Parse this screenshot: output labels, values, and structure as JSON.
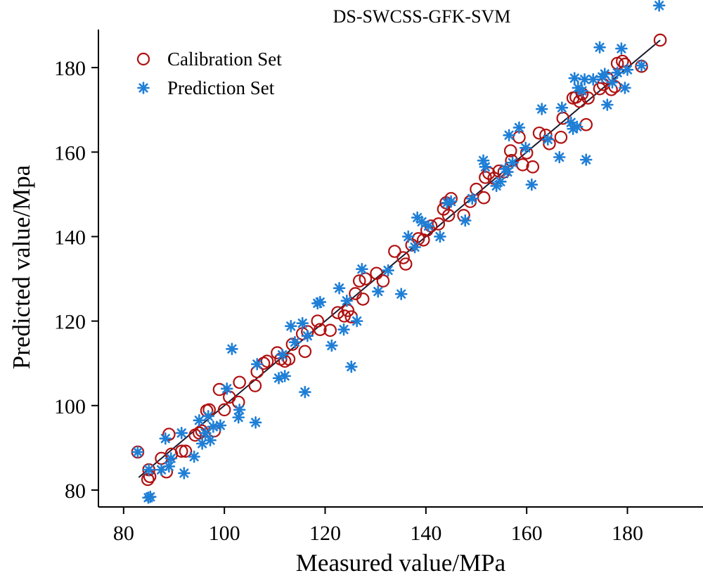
{
  "chart_data": {
    "type": "scatter",
    "title": "DS-SWCSS-GFK-SVM",
    "xlabel": "Measured value/MPa",
    "ylabel": "Predicted value/Mpa",
    "xlim": [
      75,
      195
    ],
    "ylim": [
      76,
      196
    ],
    "xticks": [
      80,
      100,
      120,
      140,
      160,
      180
    ],
    "yticks": [
      80,
      100,
      120,
      140,
      160,
      180
    ],
    "grid": false,
    "legend_position": "top-left",
    "fit_line": {
      "x": [
        83,
        186.5
      ],
      "y": [
        83,
        186.5
      ],
      "color": "#1a1a2e"
    },
    "series": [
      {
        "name": "Calibration Set",
        "marker": "circle",
        "color": "#b01111",
        "points": [
          [
            82.8,
            89
          ],
          [
            84.8,
            82.5
          ],
          [
            85.2,
            83.2
          ],
          [
            85,
            84.8
          ],
          [
            87.5,
            87.5
          ],
          [
            88.5,
            84.3
          ],
          [
            89,
            93.2
          ],
          [
            89.5,
            88.5
          ],
          [
            91.5,
            89.2
          ],
          [
            92.3,
            89.2
          ],
          [
            94.2,
            93
          ],
          [
            95,
            93.5
          ],
          [
            95.5,
            94
          ],
          [
            96.5,
            98.8
          ],
          [
            97,
            99
          ],
          [
            98,
            94
          ],
          [
            99,
            103.8
          ],
          [
            100,
            99
          ],
          [
            101,
            102
          ],
          [
            102.8,
            100.8
          ],
          [
            103,
            105.5
          ],
          [
            106.1,
            104.7
          ],
          [
            106.5,
            108
          ],
          [
            107.8,
            110
          ],
          [
            108.5,
            110.5
          ],
          [
            110.5,
            112.5
          ],
          [
            111.2,
            111
          ],
          [
            112,
            110.5
          ],
          [
            112.8,
            111
          ],
          [
            113.5,
            114.5
          ],
          [
            115.5,
            117
          ],
          [
            116,
            112.8
          ],
          [
            116.5,
            117.5
          ],
          [
            118.5,
            120
          ],
          [
            119,
            118
          ],
          [
            121,
            117.8
          ],
          [
            122.5,
            122
          ],
          [
            123.8,
            121.2
          ],
          [
            124.5,
            122.5
          ],
          [
            125.2,
            121
          ],
          [
            126,
            126.5
          ],
          [
            126.8,
            129.5
          ],
          [
            127.5,
            125.2
          ],
          [
            128,
            130
          ],
          [
            130.2,
            131.3
          ],
          [
            131.5,
            129.5
          ],
          [
            133.8,
            136.5
          ],
          [
            135.5,
            135
          ],
          [
            136,
            133.5
          ],
          [
            137.2,
            138
          ],
          [
            138.5,
            139.5
          ],
          [
            139.5,
            139.2
          ],
          [
            140.2,
            141.5
          ],
          [
            141,
            142.5
          ],
          [
            142.5,
            143
          ],
          [
            143.5,
            146.5
          ],
          [
            144,
            148
          ],
          [
            144.5,
            145
          ],
          [
            145,
            149
          ],
          [
            147.5,
            145
          ],
          [
            148.8,
            148.3
          ],
          [
            150,
            151.2
          ],
          [
            151.5,
            149.2
          ],
          [
            151.8,
            154
          ],
          [
            152.5,
            155
          ],
          [
            153.5,
            153.8
          ],
          [
            154.5,
            155.5
          ],
          [
            155.5,
            155.3
          ],
          [
            156.8,
            160.3
          ],
          [
            157,
            158
          ],
          [
            158.5,
            163.5
          ],
          [
            159.2,
            157
          ],
          [
            160,
            159.8
          ],
          [
            161.2,
            156.5
          ],
          [
            162.5,
            164.5
          ],
          [
            163.8,
            164
          ],
          [
            164.5,
            162
          ],
          [
            166.8,
            163.5
          ],
          [
            167.2,
            168
          ],
          [
            169.2,
            172.8
          ],
          [
            169.8,
            173
          ],
          [
            170.5,
            172
          ],
          [
            171,
            173.8
          ],
          [
            171.8,
            166.5
          ],
          [
            172.2,
            172.8
          ],
          [
            174.5,
            175
          ],
          [
            175.2,
            176
          ],
          [
            176,
            177.5
          ],
          [
            176.8,
            174.8
          ],
          [
            177.5,
            175.5
          ],
          [
            178,
            181
          ],
          [
            179,
            181.5
          ],
          [
            179.5,
            180.8
          ],
          [
            182.8,
            180.3
          ],
          [
            186.5,
            186.5
          ]
        ]
      },
      {
        "name": "Prediction Set",
        "marker": "asterisk",
        "color": "#1f7fd6",
        "points": [
          [
            82.8,
            89
          ],
          [
            84.9,
            78.2
          ],
          [
            85.3,
            78.4
          ],
          [
            85,
            84.8
          ],
          [
            87.5,
            84.8
          ],
          [
            88.3,
            92.2
          ],
          [
            89,
            85.6
          ],
          [
            89.4,
            87.5
          ],
          [
            91.5,
            93.5
          ],
          [
            92,
            84
          ],
          [
            94,
            87.9
          ],
          [
            95,
            96.5
          ],
          [
            95.6,
            91
          ],
          [
            96.2,
            93.5
          ],
          [
            96.8,
            97.5
          ],
          [
            97.2,
            91.8
          ],
          [
            97.8,
            95
          ],
          [
            99.2,
            95.3
          ],
          [
            100.5,
            104
          ],
          [
            101.5,
            113.4
          ],
          [
            102.8,
            97.2
          ],
          [
            103,
            99
          ],
          [
            106.2,
            96
          ],
          [
            106.5,
            109.8
          ],
          [
            110.8,
            106.5
          ],
          [
            111.5,
            112
          ],
          [
            112,
            107
          ],
          [
            113.2,
            118.8
          ],
          [
            114,
            115
          ],
          [
            115.5,
            119.5
          ],
          [
            116,
            103.2
          ],
          [
            116.5,
            116.5
          ],
          [
            118.5,
            124.2
          ],
          [
            119,
            124.5
          ],
          [
            121.3,
            114.2
          ],
          [
            122.8,
            127.8
          ],
          [
            123.7,
            118
          ],
          [
            124.3,
            124.8
          ],
          [
            125.2,
            109.2
          ],
          [
            126.3,
            120
          ],
          [
            127.3,
            132.3
          ],
          [
            130.5,
            127
          ],
          [
            132.5,
            132
          ],
          [
            135.1,
            126.4
          ],
          [
            136.5,
            140
          ],
          [
            137.8,
            137.5
          ],
          [
            138.3,
            144.5
          ],
          [
            139.2,
            143.5
          ],
          [
            140.5,
            142.5
          ],
          [
            142.8,
            140
          ],
          [
            144.2,
            148
          ],
          [
            145,
            148.3
          ],
          [
            147.8,
            143.8
          ],
          [
            149.2,
            149
          ],
          [
            151.4,
            158
          ],
          [
            151.8,
            156.5
          ],
          [
            154,
            152
          ],
          [
            154.8,
            153
          ],
          [
            155.8,
            156
          ],
          [
            156.2,
            155.3
          ],
          [
            156.5,
            164
          ],
          [
            157.2,
            157.5
          ],
          [
            158.5,
            165.8
          ],
          [
            159.8,
            161
          ],
          [
            161,
            152.3
          ],
          [
            163,
            170.2
          ],
          [
            164.2,
            163
          ],
          [
            166.5,
            158.8
          ],
          [
            167,
            170.5
          ],
          [
            168.8,
            167
          ],
          [
            169.2,
            165.5
          ],
          [
            169.5,
            177.5
          ],
          [
            170,
            166
          ],
          [
            170.2,
            175.2
          ],
          [
            171,
            174.5
          ],
          [
            171.5,
            177.2
          ],
          [
            171.8,
            158.2
          ],
          [
            173.2,
            177.2
          ],
          [
            174.5,
            184.8
          ],
          [
            175,
            177.8
          ],
          [
            175.5,
            178.5
          ],
          [
            176,
            171.2
          ],
          [
            177,
            176.5
          ],
          [
            178,
            178.8
          ],
          [
            178.8,
            184.5
          ],
          [
            179.5,
            175.2
          ],
          [
            180,
            179.5
          ],
          [
            182.8,
            180.5
          ],
          [
            186.3,
            194.7
          ]
        ]
      }
    ]
  }
}
